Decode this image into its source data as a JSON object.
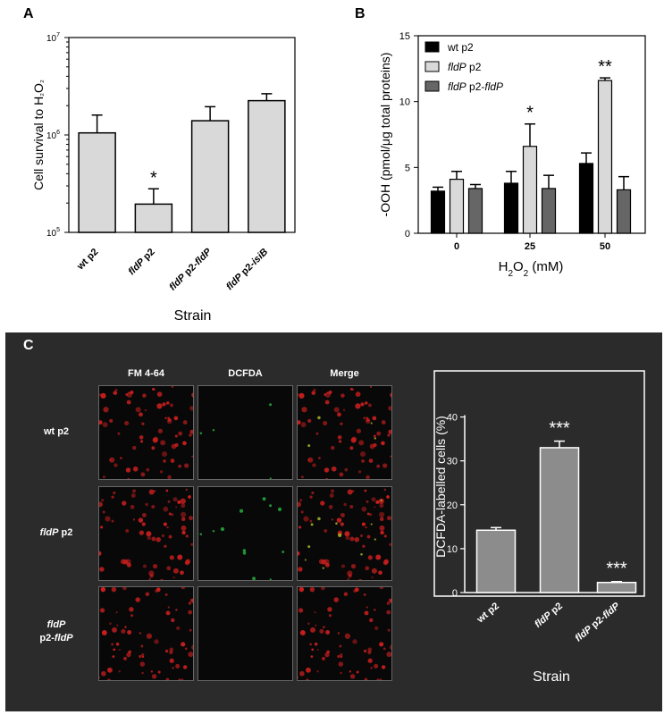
{
  "panelA": {
    "letter": "A",
    "ylabel": "Cell survival to H₂O₂",
    "xlabel": "Strain",
    "ticks": [
      {
        "base": "10",
        "exp": "5",
        "value": 100000
      },
      {
        "base": "10",
        "exp": "6",
        "value": 1000000
      },
      {
        "base": "10",
        "exp": "7",
        "value": 10000000
      }
    ],
    "categories": [
      [
        {
          "t": "wt p2",
          "i": false
        }
      ],
      [
        {
          "t": "fldP",
          "i": true
        },
        {
          "t": " p2",
          "i": false
        }
      ],
      [
        {
          "t": "fldP",
          "i": true
        },
        {
          "t": " p2-",
          "i": false
        },
        {
          "t": "fldP",
          "i": true
        }
      ],
      [
        {
          "t": "fldP",
          "i": true
        },
        {
          "t": " p2-",
          "i": false
        },
        {
          "t": "isiB",
          "i": true
        }
      ]
    ],
    "fill": "#d9d9d9"
  },
  "panelB": {
    "letter": "B",
    "ylabel": "-OOH (pmol/μg total proteins)",
    "xlabel": "H₂O₂ (mM)",
    "yticks": [
      "0",
      "5",
      "10",
      "15"
    ],
    "legend": [
      {
        "parts": [
          {
            "t": "wt p2",
            "i": false
          }
        ],
        "color": "#000000"
      },
      {
        "parts": [
          {
            "t": "fldP",
            "i": true
          },
          {
            "t": " p2",
            "i": false
          }
        ],
        "color": "#d9d9d9"
      },
      {
        "parts": [
          {
            "t": "fldP",
            "i": true
          },
          {
            "t": " p2-",
            "i": false
          },
          {
            "t": "fldP",
            "i": true
          }
        ],
        "color": "#666666"
      }
    ]
  },
  "panelC": {
    "letter": "C",
    "columns": [
      "FM 4-64",
      "DCFDA",
      "Merge"
    ],
    "rows": [
      [
        {
          "t": "wt p2",
          "i": false
        }
      ],
      [
        {
          "t": "fldP",
          "i": true
        },
        {
          "t": " p2",
          "i": false
        }
      ],
      [
        {
          "t": "fldP",
          "i": true
        }
      ],
      [
        {
          "t": "p2-",
          "i": false
        },
        {
          "t": "fldP",
          "i": true
        }
      ]
    ],
    "ylabel": "DCFDA-labelled cells (%)",
    "xlabel": "Strain",
    "yticks": [
      "0",
      "10",
      "20",
      "30",
      "40"
    ],
    "categories": [
      [
        {
          "t": "wt p2",
          "i": false
        }
      ],
      [
        {
          "t": "fldP",
          "i": true
        },
        {
          "t": " p2",
          "i": false
        }
      ],
      [
        {
          "t": "fldP",
          "i": true
        },
        {
          "t": " p2-",
          "i": false
        },
        {
          "t": "fldP",
          "i": true
        }
      ]
    ],
    "fill": "#8c8c8c"
  },
  "chart_data": [
    {
      "panel": "A",
      "type": "bar",
      "categories": [
        "wt p2",
        "fldP p2",
        "fldP p2-fldP",
        "fldP p2-isiB"
      ],
      "values": [
        1050000,
        195000,
        1400000,
        2250000
      ],
      "error": [
        550000,
        85000,
        550000,
        400000
      ],
      "annotations": [
        "",
        "*",
        "",
        ""
      ],
      "ylim": [
        100000,
        10000000
      ],
      "yscale": "log",
      "ylabel": "Cell survival to H₂O₂",
      "xlabel": "Strain"
    },
    {
      "panel": "B",
      "type": "bar",
      "categories": [
        "0",
        "25",
        "50"
      ],
      "series": [
        {
          "name": "wt p2",
          "values": [
            3.2,
            3.8,
            5.3
          ],
          "error": [
            0.3,
            0.9,
            0.8
          ]
        },
        {
          "name": "fldP p2",
          "values": [
            4.1,
            6.6,
            11.6
          ],
          "error": [
            0.6,
            1.7,
            0.2
          ]
        },
        {
          "name": "fldP p2-fldP",
          "values": [
            3.4,
            3.4,
            3.3
          ],
          "error": [
            0.3,
            1.0,
            1.0
          ]
        }
      ],
      "annotations": [
        {
          "category": "25",
          "text": "*"
        },
        {
          "category": "50",
          "text": "**"
        }
      ],
      "ylim": [
        0,
        15
      ],
      "ylabel": "-OOH (pmol/μg total proteins)",
      "xlabel": "H₂O₂ (mM)",
      "legend": "top-left"
    },
    {
      "panel": "C",
      "type": "bar",
      "categories": [
        "wt p2",
        "fldP p2",
        "fldP p2-fldP"
      ],
      "values": [
        14.2,
        33.0,
        2.3
      ],
      "error": [
        0.6,
        1.5,
        0.2
      ],
      "annotations": [
        "",
        "***",
        "***"
      ],
      "ylim": [
        0,
        45
      ],
      "ylabel": "DCFDA-labelled cells (%)",
      "xlabel": "Strain"
    }
  ]
}
